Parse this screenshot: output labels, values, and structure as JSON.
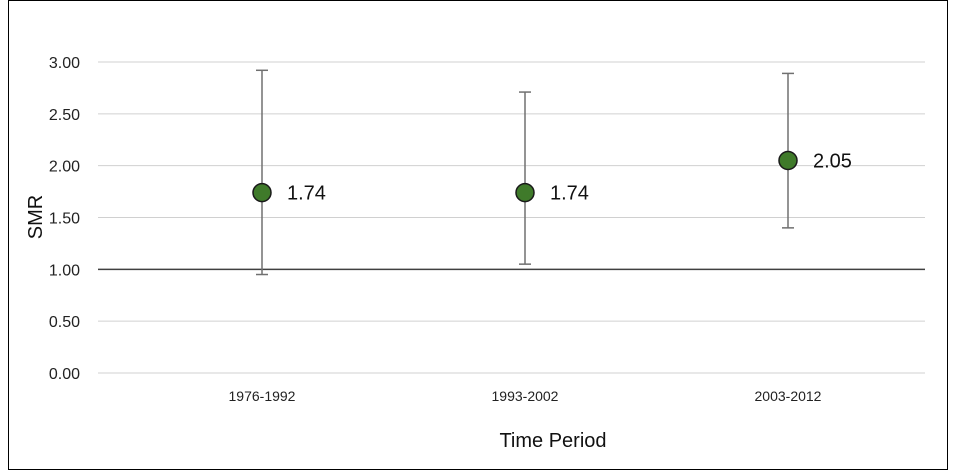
{
  "chart_data": {
    "type": "scatter",
    "categories": [
      "1976-1992",
      "1993-2002",
      "2003-2012"
    ],
    "series": [
      {
        "values": [
          1.74,
          1.74,
          2.05
        ],
        "lower": [
          0.95,
          1.05,
          1.4
        ],
        "upper": [
          2.92,
          2.71,
          2.89
        ],
        "data_labels": [
          "1.74",
          "1.74",
          "2.05"
        ]
      }
    ],
    "title": "",
    "xlabel": "Time Period",
    "ylabel": "SMR",
    "ylim": [
      0,
      3
    ],
    "yticks": [
      "0.00",
      "0.50",
      "1.00",
      "1.50",
      "2.00",
      "2.50",
      "3.00"
    ],
    "reference_line": 1.0,
    "grid": true,
    "legend": "none",
    "marker_color": "#3f7a2a",
    "gridline_color": "#d0d0d0",
    "errorbar_color": "#707070",
    "reference_line_color": "#404040"
  }
}
